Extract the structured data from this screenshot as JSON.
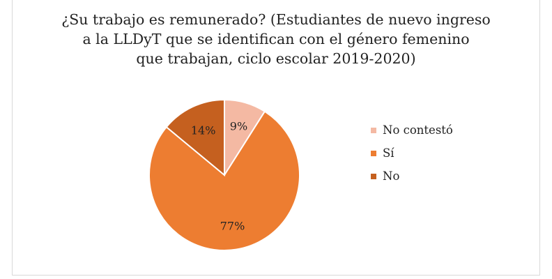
{
  "chart_data": {
    "type": "pie",
    "title_lines": [
      "¿Su trabajo es remunerado? (Estudiantes de nuevo ingreso",
      "a la LLDyT que se identifican con el género femenino",
      "que trabajan, ciclo escolar 2019-2020)"
    ],
    "categories": [
      "No contestó",
      "Sí",
      "No"
    ],
    "values": [
      9,
      77,
      14
    ],
    "data_labels": [
      "9%",
      "77%",
      "14%"
    ],
    "colors": [
      "#F4B9A3",
      "#ED7D31",
      "#C5601F"
    ],
    "legend_position": "right"
  }
}
